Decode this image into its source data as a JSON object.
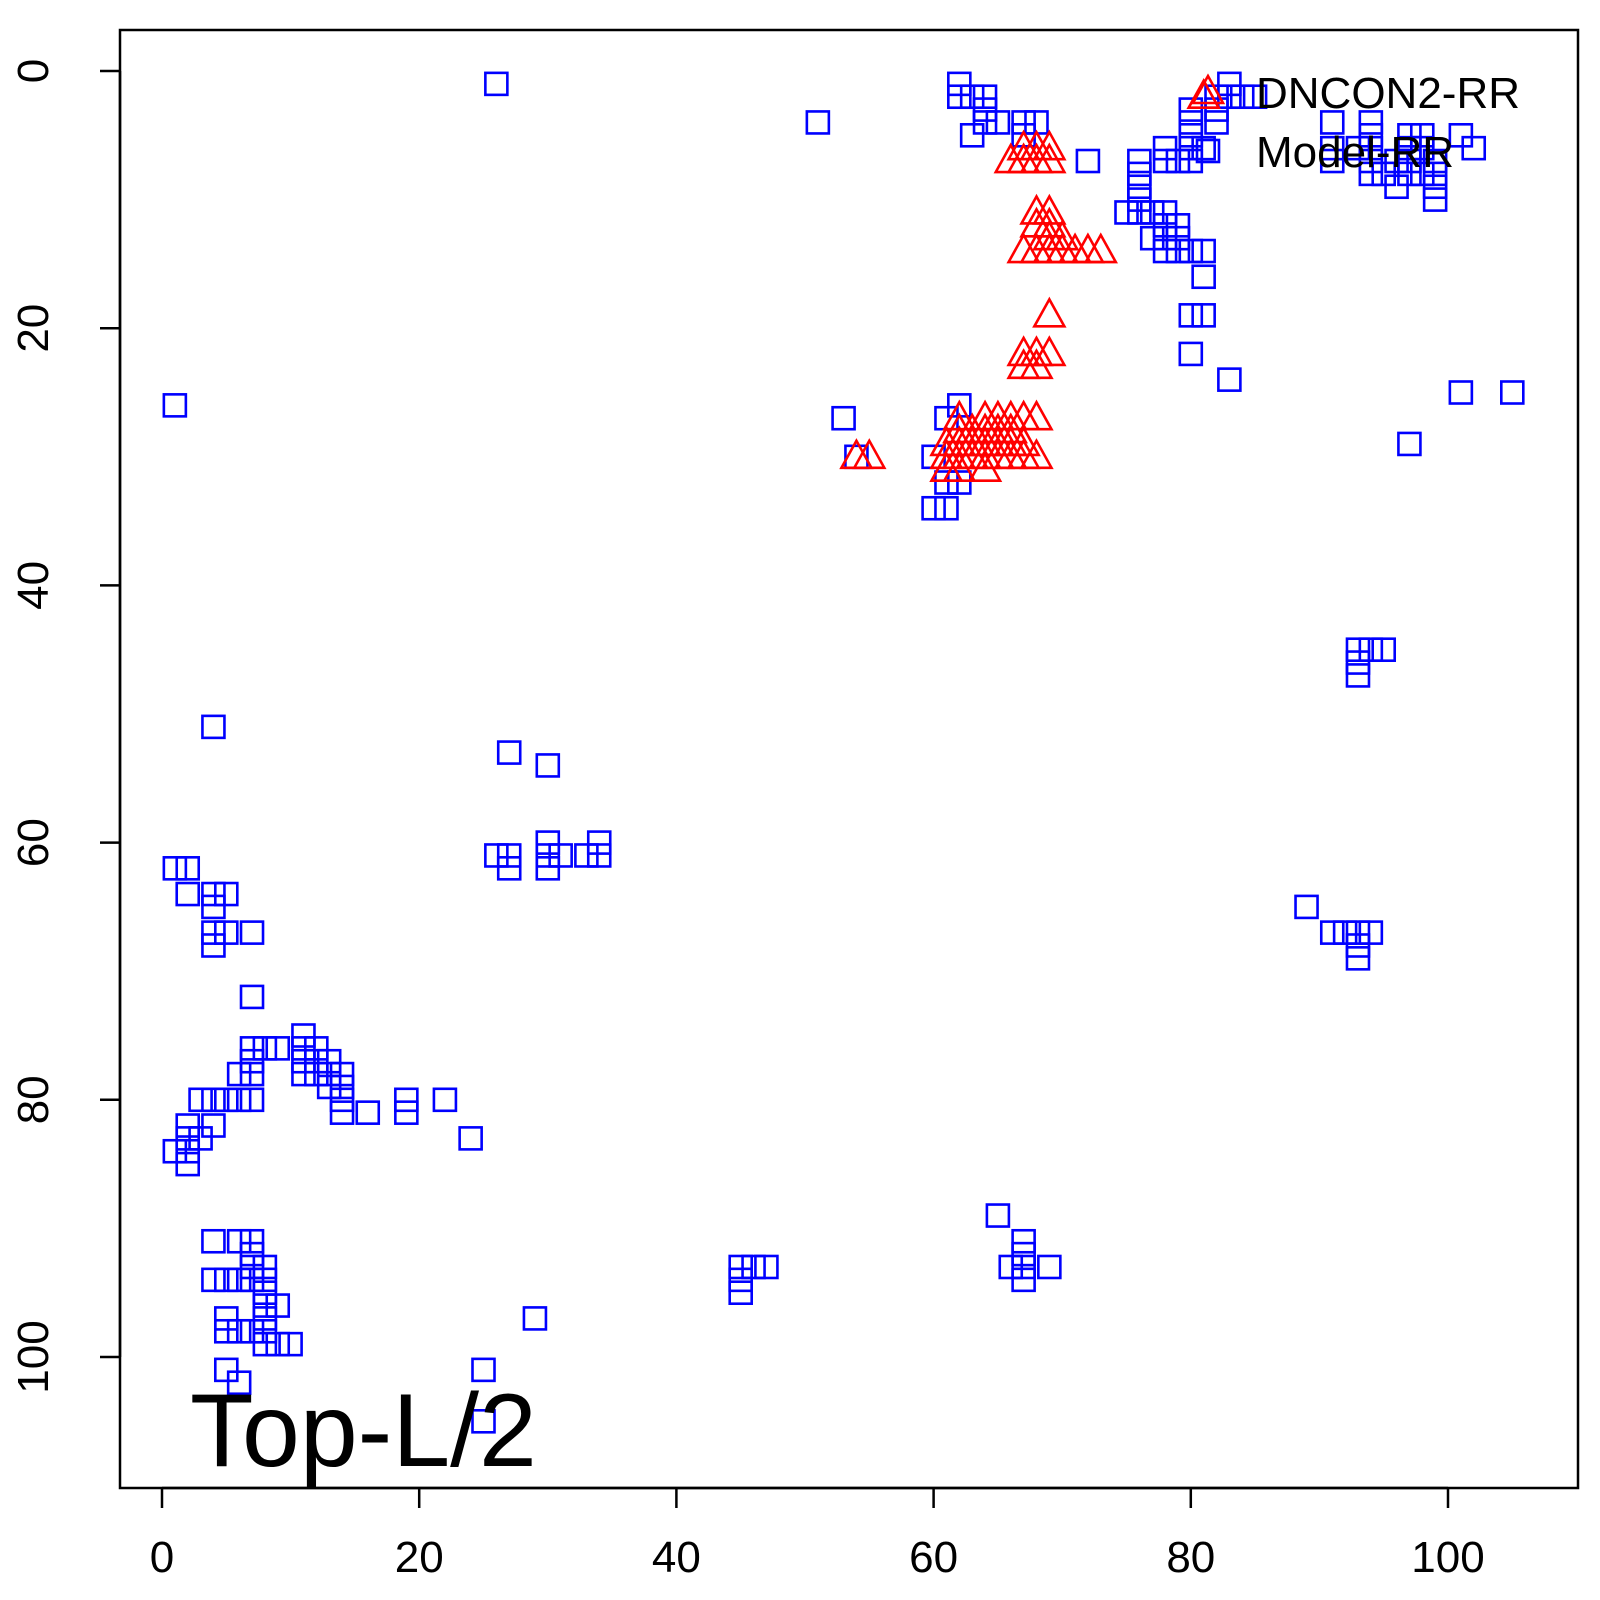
{
  "chart_data": {
    "type": "scatter",
    "x_ticks": [
      0,
      20,
      40,
      60,
      80,
      100
    ],
    "y_ticks": [
      0,
      20,
      40,
      60,
      80,
      100
    ],
    "xlim": [
      -3,
      110
    ],
    "ylim": [
      -3,
      110
    ],
    "y_axis_reversed": true,
    "legend_position": "top-right",
    "annotation": "Top-L/2",
    "series": [
      {
        "name": "DNCON2-RR",
        "marker": "triangle",
        "color": "#ff0000",
        "points": [
          [
            67,
            6
          ],
          [
            68,
            6
          ],
          [
            69,
            6
          ],
          [
            66,
            7
          ],
          [
            67,
            7
          ],
          [
            68,
            7
          ],
          [
            69,
            7
          ],
          [
            68,
            11
          ],
          [
            69,
            11
          ],
          [
            68,
            12
          ],
          [
            69,
            12
          ],
          [
            69,
            13
          ],
          [
            70,
            13
          ],
          [
            67,
            14
          ],
          [
            68,
            14
          ],
          [
            69,
            14
          ],
          [
            70,
            14
          ],
          [
            71,
            14
          ],
          [
            72,
            14
          ],
          [
            73,
            14
          ],
          [
            69,
            19
          ],
          [
            67,
            22
          ],
          [
            68,
            22
          ],
          [
            69,
            22
          ],
          [
            67,
            23
          ],
          [
            68,
            23
          ],
          [
            62,
            27
          ],
          [
            64,
            27
          ],
          [
            65,
            27
          ],
          [
            66,
            27
          ],
          [
            67,
            27
          ],
          [
            68,
            27
          ],
          [
            62,
            28
          ],
          [
            63,
            28
          ],
          [
            64,
            28
          ],
          [
            65,
            28
          ],
          [
            66,
            28
          ],
          [
            61,
            29
          ],
          [
            62,
            29
          ],
          [
            63,
            29
          ],
          [
            64,
            29
          ],
          [
            65,
            29
          ],
          [
            66,
            29
          ],
          [
            67,
            29
          ],
          [
            61,
            30
          ],
          [
            62,
            30
          ],
          [
            63,
            30
          ],
          [
            64,
            30
          ],
          [
            65,
            30
          ],
          [
            66,
            30
          ],
          [
            67,
            30
          ],
          [
            68,
            30
          ],
          [
            54,
            30
          ],
          [
            55,
            30
          ],
          [
            61,
            31
          ],
          [
            62,
            31
          ],
          [
            64,
            31
          ],
          [
            81,
            2
          ]
        ]
      },
      {
        "name": "Model-RR",
        "marker": "square",
        "color": "#0000ff",
        "points": [
          [
            26,
            1
          ],
          [
            62,
            1
          ],
          [
            83,
            1
          ],
          [
            62,
            2
          ],
          [
            63,
            2
          ],
          [
            64,
            2
          ],
          [
            82,
            2
          ],
          [
            83,
            2
          ],
          [
            84,
            2
          ],
          [
            85,
            2
          ],
          [
            64,
            3
          ],
          [
            80,
            3
          ],
          [
            82,
            3
          ],
          [
            51,
            4
          ],
          [
            64,
            4
          ],
          [
            65,
            4
          ],
          [
            67,
            4
          ],
          [
            68,
            4
          ],
          [
            80,
            4
          ],
          [
            82,
            4
          ],
          [
            91,
            4
          ],
          [
            94,
            4
          ],
          [
            63,
            5
          ],
          [
            67,
            5
          ],
          [
            80,
            5
          ],
          [
            94,
            5
          ],
          [
            97,
            5
          ],
          [
            98,
            5
          ],
          [
            101,
            5
          ],
          [
            78,
            6
          ],
          [
            80,
            6
          ],
          [
            81,
            6
          ],
          [
            91,
            6
          ],
          [
            93,
            6
          ],
          [
            94,
            6
          ],
          [
            97,
            6
          ],
          [
            98,
            6
          ],
          [
            102,
            6
          ],
          [
            72,
            7
          ],
          [
            76,
            7
          ],
          [
            78,
            7
          ],
          [
            79,
            7
          ],
          [
            80,
            7
          ],
          [
            91,
            7
          ],
          [
            94,
            7
          ],
          [
            96,
            7
          ],
          [
            97,
            7
          ],
          [
            99,
            7
          ],
          [
            76,
            8
          ],
          [
            94,
            8
          ],
          [
            95,
            8
          ],
          [
            97,
            8
          ],
          [
            98,
            8
          ],
          [
            99,
            8
          ],
          [
            76,
            9
          ],
          [
            96,
            9
          ],
          [
            99,
            9
          ],
          [
            76,
            10
          ],
          [
            99,
            10
          ],
          [
            75,
            11
          ],
          [
            76,
            11
          ],
          [
            77,
            11
          ],
          [
            78,
            11
          ],
          [
            78,
            12
          ],
          [
            79,
            12
          ],
          [
            77,
            13
          ],
          [
            78,
            13
          ],
          [
            79,
            13
          ],
          [
            78,
            14
          ],
          [
            79,
            14
          ],
          [
            80,
            14
          ],
          [
            81,
            14
          ],
          [
            81,
            16
          ],
          [
            80,
            19
          ],
          [
            81,
            19
          ],
          [
            80,
            22
          ],
          [
            83,
            24
          ],
          [
            1,
            26
          ],
          [
            62,
            26
          ],
          [
            101,
            25
          ],
          [
            105,
            25
          ],
          [
            53,
            27
          ],
          [
            61,
            27
          ],
          [
            97,
            29
          ],
          [
            60,
            30
          ],
          [
            54,
            30
          ],
          [
            61,
            32
          ],
          [
            62,
            32
          ],
          [
            60,
            34
          ],
          [
            61,
            34
          ],
          [
            93,
            45
          ],
          [
            94,
            45
          ],
          [
            95,
            45
          ],
          [
            93,
            46
          ],
          [
            93,
            47
          ],
          [
            4,
            51
          ],
          [
            27,
            53
          ],
          [
            30,
            54
          ],
          [
            30,
            60
          ],
          [
            34,
            60
          ],
          [
            26,
            61
          ],
          [
            27,
            61
          ],
          [
            30,
            61
          ],
          [
            31,
            61
          ],
          [
            33,
            61
          ],
          [
            34,
            61
          ],
          [
            1,
            62
          ],
          [
            2,
            62
          ],
          [
            27,
            62
          ],
          [
            30,
            62
          ],
          [
            2,
            64
          ],
          [
            4,
            64
          ],
          [
            5,
            64
          ],
          [
            4,
            65
          ],
          [
            89,
            65
          ],
          [
            4,
            67
          ],
          [
            5,
            67
          ],
          [
            7,
            67
          ],
          [
            91,
            67
          ],
          [
            92,
            67
          ],
          [
            93,
            67
          ],
          [
            94,
            67
          ],
          [
            4,
            68
          ],
          [
            93,
            68
          ],
          [
            93,
            69
          ],
          [
            7,
            72
          ],
          [
            11,
            75
          ],
          [
            7,
            76
          ],
          [
            8,
            76
          ],
          [
            9,
            76
          ],
          [
            11,
            76
          ],
          [
            12,
            76
          ],
          [
            7,
            77
          ],
          [
            11,
            77
          ],
          [
            12,
            77
          ],
          [
            13,
            77
          ],
          [
            6,
            78
          ],
          [
            7,
            78
          ],
          [
            11,
            78
          ],
          [
            12,
            78
          ],
          [
            13,
            78
          ],
          [
            14,
            78
          ],
          [
            13,
            79
          ],
          [
            14,
            79
          ],
          [
            3,
            80
          ],
          [
            4,
            80
          ],
          [
            5,
            80
          ],
          [
            6,
            80
          ],
          [
            7,
            80
          ],
          [
            14,
            80
          ],
          [
            19,
            80
          ],
          [
            22,
            80
          ],
          [
            14,
            81
          ],
          [
            16,
            81
          ],
          [
            19,
            81
          ],
          [
            2,
            82
          ],
          [
            4,
            82
          ],
          [
            2,
            83
          ],
          [
            3,
            83
          ],
          [
            24,
            83
          ],
          [
            1,
            84
          ],
          [
            2,
            84
          ],
          [
            2,
            85
          ],
          [
            65,
            89
          ],
          [
            4,
            91
          ],
          [
            6,
            91
          ],
          [
            7,
            91
          ],
          [
            67,
            91
          ],
          [
            7,
            92
          ],
          [
            67,
            92
          ],
          [
            7,
            93
          ],
          [
            8,
            93
          ],
          [
            45,
            93
          ],
          [
            46,
            93
          ],
          [
            47,
            93
          ],
          [
            66,
            93
          ],
          [
            67,
            93
          ],
          [
            69,
            93
          ],
          [
            4,
            94
          ],
          [
            5,
            94
          ],
          [
            6,
            94
          ],
          [
            7,
            94
          ],
          [
            8,
            94
          ],
          [
            45,
            94
          ],
          [
            67,
            94
          ],
          [
            8,
            95
          ],
          [
            45,
            95
          ],
          [
            8,
            96
          ],
          [
            9,
            96
          ],
          [
            5,
            97
          ],
          [
            8,
            97
          ],
          [
            29,
            97
          ],
          [
            5,
            98
          ],
          [
            6,
            98
          ],
          [
            7,
            98
          ],
          [
            8,
            98
          ],
          [
            8,
            99
          ],
          [
            9,
            99
          ],
          [
            10,
            99
          ],
          [
            5,
            101
          ],
          [
            25,
            101
          ],
          [
            6,
            102
          ],
          [
            25,
            105
          ]
        ]
      }
    ]
  }
}
